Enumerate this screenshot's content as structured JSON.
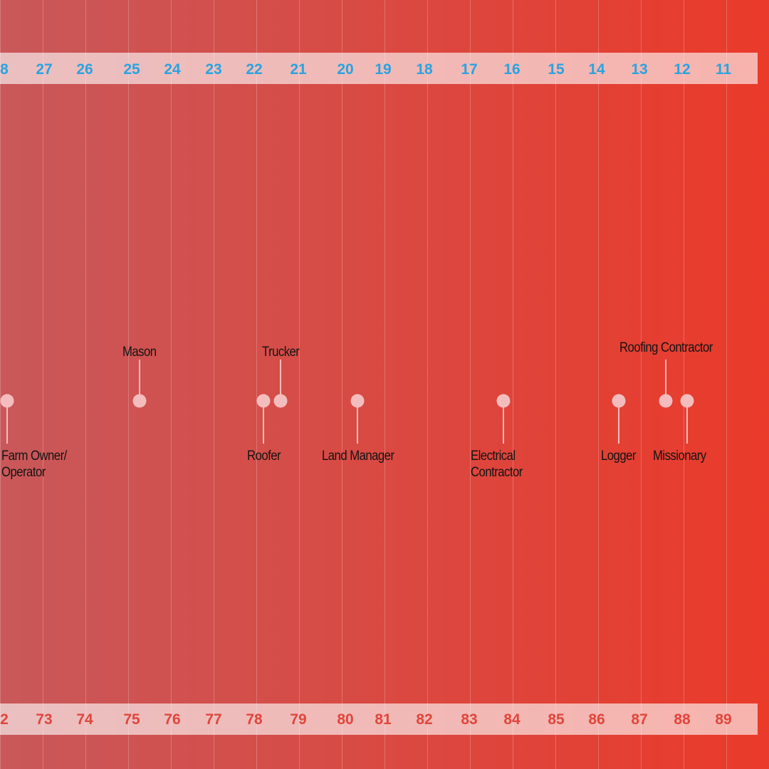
{
  "colors": {
    "gradient_left": "#c9585a",
    "gradient_right": "#ea3a2a",
    "top_tick_color": "#2aa3e0",
    "bottom_tick_color": "#e0463c",
    "pin_color": "#f4bdbd"
  },
  "chart_data": {
    "type": "scatter",
    "top_axis": {
      "tick_labels": [
        "8",
        "27",
        "26",
        "25",
        "24",
        "23",
        "22",
        "21",
        "20",
        "19",
        "18",
        "17",
        "16",
        "15",
        "14",
        "13",
        "12",
        "11"
      ]
    },
    "bottom_axis": {
      "tick_labels": [
        "2",
        "73",
        "74",
        "75",
        "76",
        "77",
        "78",
        "79",
        "80",
        "81",
        "82",
        "83",
        "84",
        "85",
        "86",
        "87",
        "88",
        "89"
      ]
    },
    "points": [
      {
        "label": "Farm Owner/\nOperator",
        "x": 72.2,
        "label_side": "below"
      },
      {
        "label": "Mason",
        "x": 75.3,
        "label_side": "above"
      },
      {
        "label": "Roofer",
        "x": 78.2,
        "label_side": "below"
      },
      {
        "label": "Trucker",
        "x": 78.6,
        "label_side": "above"
      },
      {
        "label": "Land Manager",
        "x": 80.4,
        "label_side": "below"
      },
      {
        "label": "Electrical\nContractor",
        "x": 83.8,
        "label_side": "below"
      },
      {
        "label": "Logger",
        "x": 86.5,
        "label_side": "below"
      },
      {
        "label": "Roofing Contractor",
        "x": 87.6,
        "label_side": "above"
      },
      {
        "label": "Missionary",
        "x": 88.1,
        "label_side": "below"
      }
    ]
  }
}
